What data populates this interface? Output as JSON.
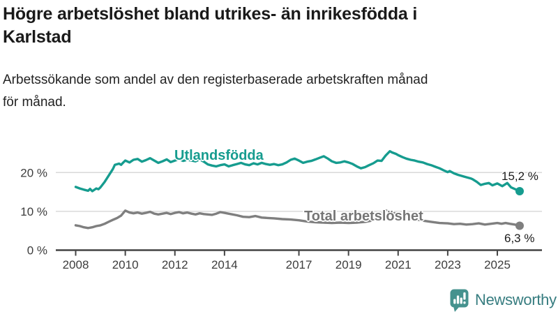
{
  "header": {
    "title_lines": [
      "Högre arbetslöshet bland utrikes- än inrikesfödda i",
      "Karlstad"
    ],
    "subtitle_lines": [
      "Arbetssökande som andel av den registerbaserade arbetskraften månad",
      "för månad."
    ]
  },
  "chart_data": {
    "type": "line",
    "title": "Högre arbetslöshet bland utrikes- än inrikesfödda i Karlstad",
    "subtitle": "Arbetssökande som andel av den registerbaserade arbetskraften månad för månad.",
    "unit": "%",
    "grid": "horizontal",
    "legend_position": "inline-labels",
    "x_range": [
      2008,
      2026
    ],
    "y_range": [
      0,
      29
    ],
    "x_ticks": [
      2008,
      2010,
      2012,
      2014,
      2017,
      2019,
      2021,
      2023,
      2025
    ],
    "y_ticks": [
      {
        "value": 0,
        "label": "0 %"
      },
      {
        "value": 10,
        "label": "10 %"
      },
      {
        "value": 20,
        "label": "20 %"
      }
    ],
    "axis_color": "#444444",
    "gridline_color": "#d9d9d9",
    "series": [
      {
        "name": "Utlandsfödda",
        "color": "#169c8f",
        "end_label": "15,2 %",
        "end_value": 15.2,
        "points": [
          [
            2008.0,
            16.3
          ],
          [
            2008.17,
            15.9
          ],
          [
            2008.33,
            15.6
          ],
          [
            2008.5,
            15.3
          ],
          [
            2008.58,
            15.8
          ],
          [
            2008.67,
            15.2
          ],
          [
            2008.83,
            15.9
          ],
          [
            2008.92,
            15.7
          ],
          [
            2009.0,
            16.2
          ],
          [
            2009.17,
            17.6
          ],
          [
            2009.33,
            19.2
          ],
          [
            2009.5,
            20.9
          ],
          [
            2009.58,
            22.0
          ],
          [
            2009.75,
            22.3
          ],
          [
            2009.83,
            22.0
          ],
          [
            2009.92,
            22.6
          ],
          [
            2010.0,
            23.1
          ],
          [
            2010.17,
            22.6
          ],
          [
            2010.33,
            23.3
          ],
          [
            2010.5,
            23.5
          ],
          [
            2010.67,
            22.8
          ],
          [
            2010.83,
            23.2
          ],
          [
            2011.0,
            23.7
          ],
          [
            2011.17,
            23.1
          ],
          [
            2011.33,
            22.5
          ],
          [
            2011.5,
            22.9
          ],
          [
            2011.67,
            23.4
          ],
          [
            2011.83,
            22.7
          ],
          [
            2012.0,
            23.1
          ],
          [
            2012.17,
            23.4
          ],
          [
            2012.33,
            23.0
          ],
          [
            2012.5,
            23.3
          ],
          [
            2012.67,
            23.1
          ],
          [
            2012.83,
            22.9
          ],
          [
            2013.0,
            23.4
          ],
          [
            2013.17,
            22.8
          ],
          [
            2013.33,
            22.1
          ],
          [
            2013.5,
            21.8
          ],
          [
            2013.67,
            21.6
          ],
          [
            2013.83,
            21.9
          ],
          [
            2014.0,
            22.1
          ],
          [
            2014.17,
            21.6
          ],
          [
            2014.33,
            21.9
          ],
          [
            2014.5,
            22.2
          ],
          [
            2014.67,
            22.5
          ],
          [
            2014.83,
            22.1
          ],
          [
            2015.0,
            21.9
          ],
          [
            2015.17,
            22.4
          ],
          [
            2015.33,
            22.1
          ],
          [
            2015.5,
            22.5
          ],
          [
            2015.67,
            22.2
          ],
          [
            2015.83,
            22.0
          ],
          [
            2016.0,
            22.2
          ],
          [
            2016.17,
            21.9
          ],
          [
            2016.33,
            22.1
          ],
          [
            2016.5,
            22.6
          ],
          [
            2016.67,
            23.3
          ],
          [
            2016.83,
            23.6
          ],
          [
            2017.0,
            23.1
          ],
          [
            2017.17,
            22.5
          ],
          [
            2017.33,
            22.8
          ],
          [
            2017.5,
            23.0
          ],
          [
            2017.67,
            23.4
          ],
          [
            2017.83,
            23.8
          ],
          [
            2018.0,
            24.2
          ],
          [
            2018.17,
            23.6
          ],
          [
            2018.33,
            22.9
          ],
          [
            2018.5,
            22.5
          ],
          [
            2018.67,
            22.6
          ],
          [
            2018.83,
            22.9
          ],
          [
            2019.0,
            22.6
          ],
          [
            2019.17,
            22.2
          ],
          [
            2019.33,
            21.6
          ],
          [
            2019.5,
            21.1
          ],
          [
            2019.67,
            21.4
          ],
          [
            2019.83,
            21.9
          ],
          [
            2020.0,
            22.4
          ],
          [
            2020.17,
            23.1
          ],
          [
            2020.33,
            23.0
          ],
          [
            2020.5,
            24.4
          ],
          [
            2020.67,
            25.5
          ],
          [
            2020.75,
            25.2
          ],
          [
            2020.92,
            24.8
          ],
          [
            2021.0,
            24.5
          ],
          [
            2021.17,
            24.0
          ],
          [
            2021.33,
            23.6
          ],
          [
            2021.5,
            23.3
          ],
          [
            2021.67,
            23.1
          ],
          [
            2021.83,
            22.8
          ],
          [
            2022.0,
            22.6
          ],
          [
            2022.17,
            22.2
          ],
          [
            2022.33,
            21.9
          ],
          [
            2022.5,
            21.5
          ],
          [
            2022.67,
            21.1
          ],
          [
            2022.83,
            20.6
          ],
          [
            2023.0,
            20.1
          ],
          [
            2023.08,
            20.4
          ],
          [
            2023.25,
            19.8
          ],
          [
            2023.42,
            19.4
          ],
          [
            2023.58,
            19.1
          ],
          [
            2023.75,
            18.8
          ],
          [
            2023.92,
            18.5
          ],
          [
            2024.0,
            18.3
          ],
          [
            2024.17,
            17.6
          ],
          [
            2024.33,
            16.8
          ],
          [
            2024.5,
            17.1
          ],
          [
            2024.66,
            17.3
          ],
          [
            2024.8,
            16.7
          ],
          [
            2025.0,
            17.2
          ],
          [
            2025.2,
            16.5
          ],
          [
            2025.4,
            17.3
          ],
          [
            2025.55,
            16.2
          ],
          [
            2025.9,
            15.2
          ]
        ]
      },
      {
        "name": "Total arbetslöshet",
        "color": "#7f7f7f",
        "label_color": "#757575",
        "end_label": "6,3 %",
        "end_value": 6.3,
        "points": [
          [
            2008.0,
            6.4
          ],
          [
            2008.17,
            6.2
          ],
          [
            2008.33,
            5.9
          ],
          [
            2008.5,
            5.7
          ],
          [
            2008.67,
            5.9
          ],
          [
            2008.83,
            6.2
          ],
          [
            2009.0,
            6.4
          ],
          [
            2009.17,
            6.8
          ],
          [
            2009.33,
            7.3
          ],
          [
            2009.5,
            7.8
          ],
          [
            2009.67,
            8.3
          ],
          [
            2009.83,
            8.9
          ],
          [
            2010.0,
            10.2
          ],
          [
            2010.17,
            9.7
          ],
          [
            2010.33,
            9.5
          ],
          [
            2010.5,
            9.7
          ],
          [
            2010.67,
            9.4
          ],
          [
            2010.83,
            9.6
          ],
          [
            2011.0,
            9.9
          ],
          [
            2011.17,
            9.4
          ],
          [
            2011.33,
            9.2
          ],
          [
            2011.5,
            9.4
          ],
          [
            2011.67,
            9.6
          ],
          [
            2011.83,
            9.3
          ],
          [
            2012.0,
            9.6
          ],
          [
            2012.17,
            9.8
          ],
          [
            2012.33,
            9.5
          ],
          [
            2012.5,
            9.7
          ],
          [
            2012.67,
            9.4
          ],
          [
            2012.83,
            9.2
          ],
          [
            2013.0,
            9.5
          ],
          [
            2013.17,
            9.3
          ],
          [
            2013.5,
            9.1
          ],
          [
            2013.67,
            9.4
          ],
          [
            2013.83,
            9.8
          ],
          [
            2014.0,
            9.6
          ],
          [
            2014.25,
            9.3
          ],
          [
            2014.5,
            9.0
          ],
          [
            2014.75,
            8.6
          ],
          [
            2015.0,
            8.5
          ],
          [
            2015.25,
            8.8
          ],
          [
            2015.5,
            8.4
          ],
          [
            2015.75,
            8.3
          ],
          [
            2016.0,
            8.2
          ],
          [
            2016.33,
            8.0
          ],
          [
            2016.67,
            7.9
          ],
          [
            2017.0,
            7.7
          ],
          [
            2017.33,
            7.4
          ],
          [
            2017.67,
            7.2
          ],
          [
            2018.0,
            7.1
          ],
          [
            2018.33,
            7.0
          ],
          [
            2018.67,
            7.1
          ],
          [
            2019.0,
            7.0
          ],
          [
            2019.33,
            7.1
          ],
          [
            2019.67,
            7.3
          ],
          [
            2020.0,
            7.7
          ],
          [
            2020.25,
            8.9
          ],
          [
            2020.5,
            10.2
          ],
          [
            2020.75,
            9.7
          ],
          [
            2021.0,
            9.2
          ],
          [
            2021.33,
            8.6
          ],
          [
            2021.67,
            8.0
          ],
          [
            2022.0,
            7.6
          ],
          [
            2022.33,
            7.3
          ],
          [
            2022.67,
            7.0
          ],
          [
            2023.0,
            6.9
          ],
          [
            2023.25,
            6.7
          ],
          [
            2023.5,
            6.8
          ],
          [
            2023.75,
            6.6
          ],
          [
            2024.0,
            6.7
          ],
          [
            2024.25,
            6.9
          ],
          [
            2024.5,
            6.6
          ],
          [
            2024.75,
            6.8
          ],
          [
            2025.0,
            7.0
          ],
          [
            2025.17,
            6.8
          ],
          [
            2025.33,
            7.0
          ],
          [
            2025.5,
            6.8
          ],
          [
            2025.7,
            6.6
          ],
          [
            2025.9,
            6.3
          ]
        ]
      }
    ]
  },
  "footer": {
    "brand": "Newsworthy",
    "brand_color": "#377d80",
    "brand_icon": "bar-chart-speech-bubble",
    "brand_icon_color": "#45928e"
  }
}
